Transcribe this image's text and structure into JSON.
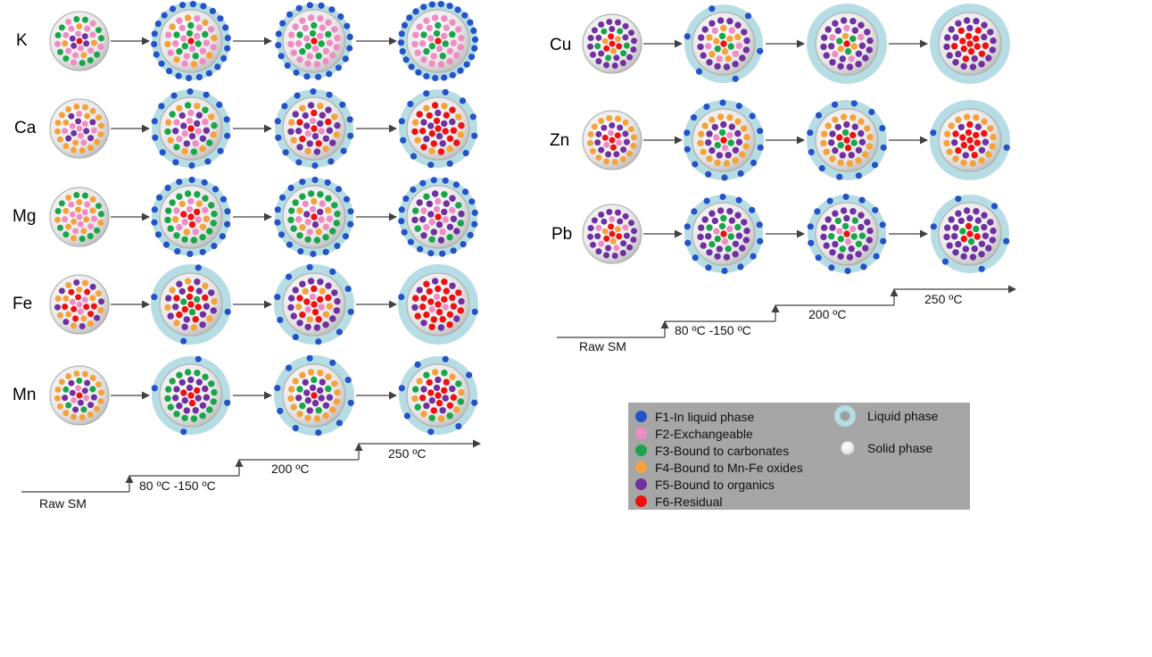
{
  "colors": {
    "F1": "#2453c8",
    "F2": "#f08cc4",
    "F3": "#1aa54a",
    "F4": "#f5a23c",
    "F5": "#7030a0",
    "F6": "#ee1111",
    "liquid": "#b7dde4",
    "particle_rim": "#9e9e9e",
    "particle_fill": "#f2f2f2",
    "arrow": "#404040"
  },
  "elements_left": [
    "K",
    "Ca",
    "Mg",
    "Fe",
    "Mn"
  ],
  "elements_right": [
    "Cu",
    "Zn",
    "Pb"
  ],
  "steps_left": [
    "Raw SM",
    "80 ºC -150 ºC",
    "200 ºC",
    "250 ºC"
  ],
  "steps_right": [
    "Raw SM",
    "80 ºC -150 ºC",
    "200 ºC",
    "250 ºC"
  ],
  "legend": {
    "fractions": [
      {
        "label": "F1-In liquid phase",
        "color": "#2453c8"
      },
      {
        "label": "F2-Exchangeable",
        "color": "#f08cc4"
      },
      {
        "label": "F3-Bound to carbonates",
        "color": "#1aa54a"
      },
      {
        "label": "F4-Bound to Mn-Fe oxides",
        "color": "#f5a23c"
      },
      {
        "label": "F5-Bound to organics",
        "color": "#7030a0"
      },
      {
        "label": "F6-Residual",
        "color": "#ee1111"
      }
    ],
    "liquid_label": "Liquid phase",
    "solid_label": "Solid phase"
  }
}
